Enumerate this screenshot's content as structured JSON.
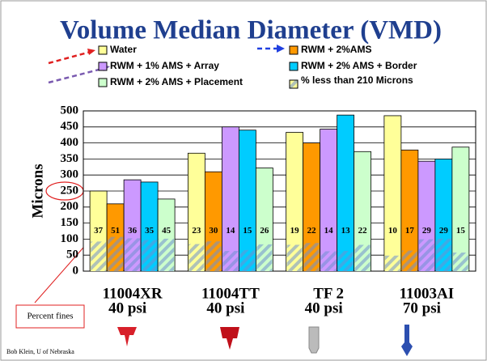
{
  "chart_data": {
    "type": "bar",
    "title": "Volume Median Diameter   (VMD)",
    "y_label": "Microns",
    "categories": [
      "11004XR",
      "11004TT",
      "TF 2",
      "11003AI"
    ],
    "category_sublabels": [
      "40 psi",
      "40 psi",
      "40 psi",
      "70 psi"
    ],
    "series": [
      {
        "name": "Water",
        "color": "#ffff99",
        "values": [
          250,
          368,
          433,
          485
        ],
        "fines": [
          37,
          23,
          19,
          10
        ]
      },
      {
        "name": "RWM + 2%AMS",
        "color": "#ff9900",
        "values": [
          210,
          310,
          400,
          378
        ],
        "fines": [
          51,
          30,
          22,
          17
        ]
      },
      {
        "name": "RWM + 1% AMS + Array",
        "color": "#cc99ff",
        "values": [
          285,
          450,
          443,
          343
        ],
        "fines": [
          36,
          14,
          14,
          29
        ]
      },
      {
        "name": "RWM + 2% AMS + Border",
        "color": "#00ccff",
        "values": [
          278,
          440,
          487,
          350
        ],
        "fines": [
          35,
          15,
          13,
          29
        ]
      },
      {
        "name": "RWM + 2% AMS + Placement",
        "color": "#ccffcc",
        "values": [
          225,
          322,
          373,
          387
        ],
        "fines": [
          45,
          26,
          22,
          15
        ]
      }
    ],
    "fines_legend": "% less than 210 Microns",
    "ylim": [
      0,
      500
    ],
    "yticks": [
      0,
      50,
      100,
      150,
      200,
      250,
      300,
      350,
      400,
      450,
      500
    ],
    "grid": true,
    "annotation": "Percent fines",
    "credit": "Bob Klein, U of Nebraska"
  }
}
